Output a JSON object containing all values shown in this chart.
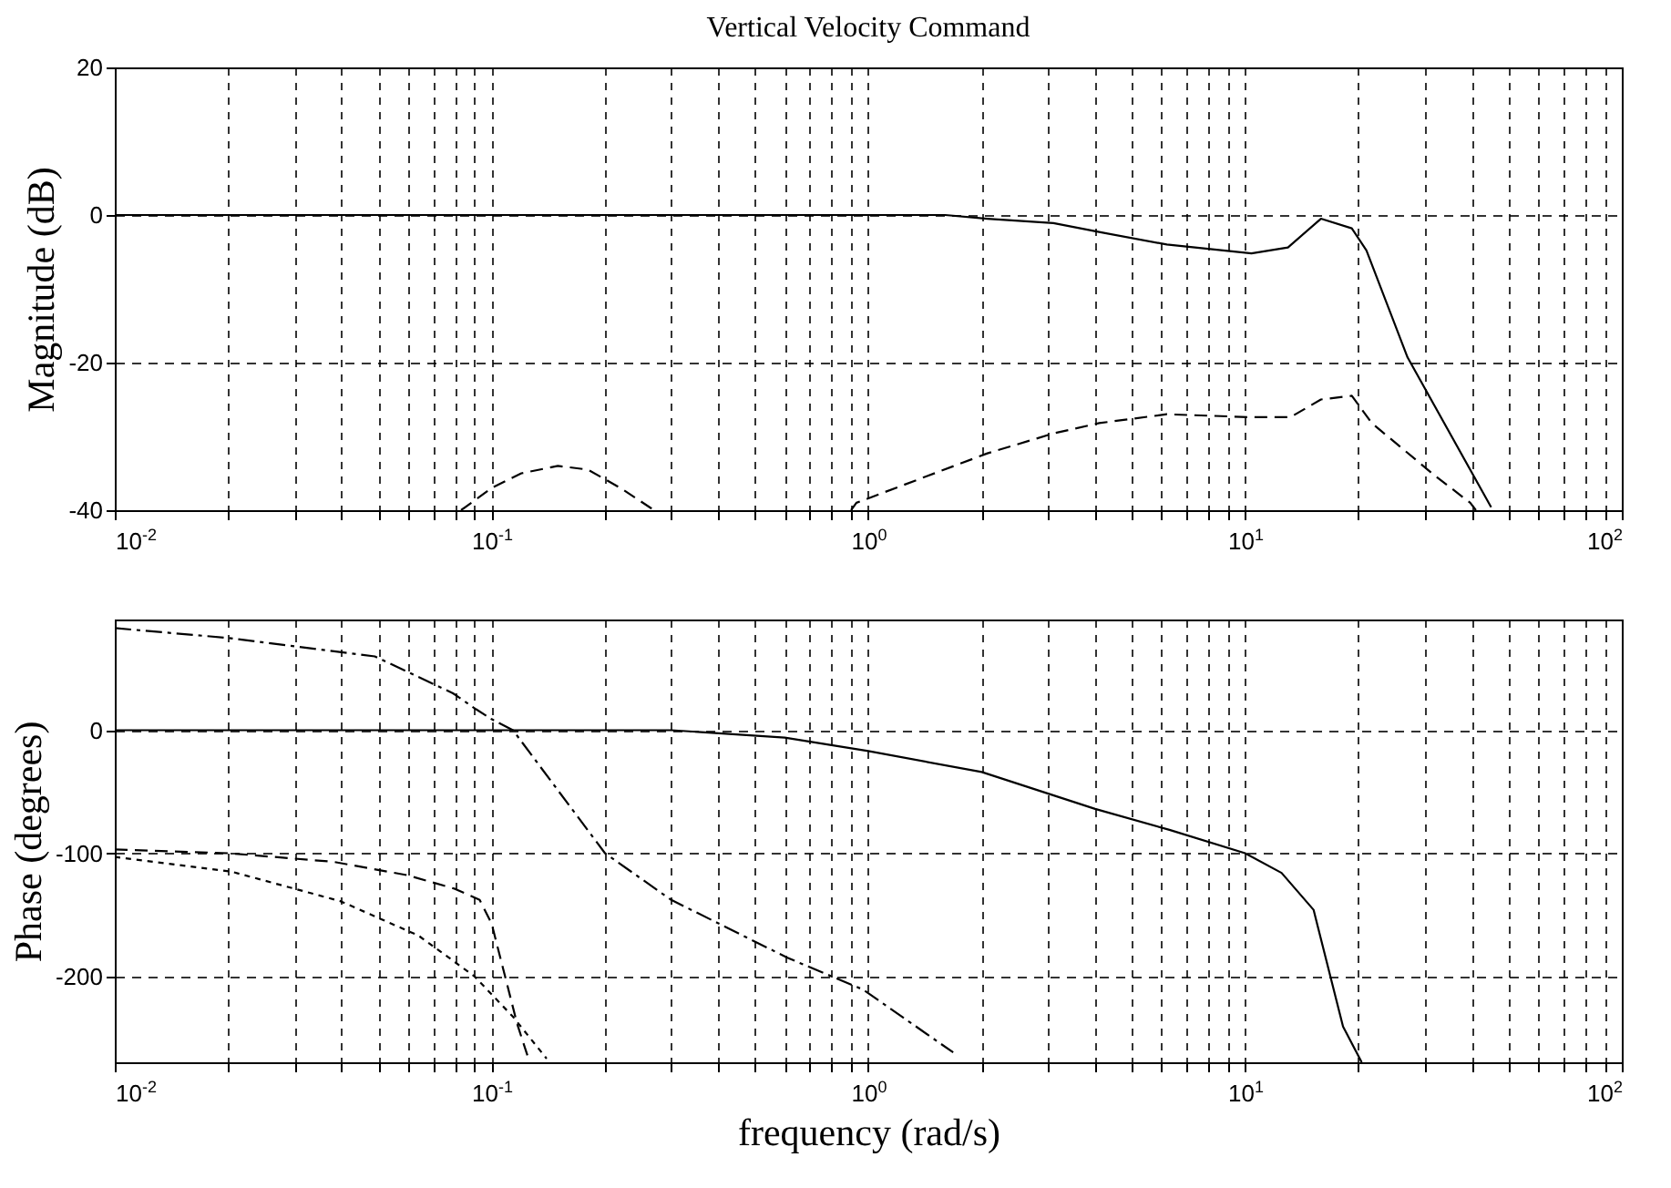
{
  "chart_data": [
    {
      "type": "line",
      "title": "Vertical Velocity Command",
      "ylabel": "Magnitude (dB)",
      "log": "x",
      "grid": true,
      "xlim": [
        0.01,
        100
      ],
      "ylim": [
        -40,
        20
      ],
      "yticks": [
        -40,
        -20,
        0,
        20
      ],
      "xticks": [
        {
          "value": 0.01,
          "label": "10$^{-2}$"
        },
        {
          "value": 0.1,
          "label": "10$^{-1}$"
        },
        {
          "value": 1,
          "label": "10$^{0}$"
        },
        {
          "value": 10,
          "label": "10$^{1}$"
        },
        {
          "value": 100,
          "label": "10$^{2}$"
        }
      ],
      "series": [
        {
          "color": "#000000",
          "line_style": "solid",
          "x": [
            0.01,
            0.1,
            0.5,
            1,
            1.6,
            2.07,
            3.1,
            4.1,
            6.2,
            10.4,
            13,
            15.9,
            19.2,
            21,
            27,
            45
          ],
          "values": [
            0,
            0,
            0,
            0,
            0,
            -0.5,
            -1.1,
            -2.3,
            -4,
            -5.2,
            -4.4,
            -0.5,
            -1.8,
            -4.8,
            -19.3,
            -39.6
          ]
        },
        {
          "color": "#000000",
          "line_style": "dashed",
          "x": [
            0.083,
            0.1,
            0.12,
            0.15,
            0.18,
            0.22,
            0.27
          ],
          "values": [
            -40,
            -37,
            -35,
            -34,
            -34.5,
            -37,
            -40
          ]
        },
        {
          "color": "#000000",
          "line_style": "dashed",
          "x": [
            0.9,
            0.93,
            2.07,
            3.1,
            4.1,
            6.2,
            10.4,
            13.2,
            15.9,
            19.2,
            21.7,
            31.7,
            39.6,
            41
          ],
          "values": [
            -40,
            -39,
            -32.3,
            -29.6,
            -28.2,
            -27,
            -27.4,
            -27.4,
            -25,
            -24.5,
            -28.2,
            -35.2,
            -39,
            -40
          ]
        }
      ]
    },
    {
      "type": "line",
      "ylabel": "Phase (degrees)",
      "xlabel": "frequency (rad/s)",
      "log": "x",
      "grid": true,
      "xlim": [
        0.01,
        100
      ],
      "ylim": [
        -270,
        90
      ],
      "yticks": [
        -200,
        -100,
        0
      ],
      "xticks": [
        {
          "value": 0.01,
          "label": "10$^{-2}$"
        },
        {
          "value": 0.1,
          "label": "10$^{-1}$"
        },
        {
          "value": 1,
          "label": "10$^{0}$"
        },
        {
          "value": 10,
          "label": "10$^{1}$"
        },
        {
          "value": 100,
          "label": "10$^{2}$"
        }
      ],
      "series": [
        {
          "color": "#000000",
          "line_style": "solid",
          "x": [
            0.01,
            0.1,
            0.3,
            0.6,
            1,
            2,
            4,
            6.3,
            10,
            12.5,
            15.2,
            18.2,
            20.4
          ],
          "values": [
            0,
            0,
            0,
            -6,
            -17,
            -34,
            -64,
            -81,
            -100,
            -116,
            -146,
            -241,
            -270
          ]
        },
        {
          "color": "#000000",
          "line_style": "dashdot",
          "x": [
            0.01,
            0.02,
            0.049,
            0.079,
            0.091,
            0.1,
            0.114,
            0.2,
            0.3,
            0.61,
            0.97,
            1.68
          ],
          "values": [
            83,
            75,
            60,
            30,
            17,
            9,
            0,
            -100,
            -138,
            -185,
            -211,
            -262
          ]
        },
        {
          "color": "#000000",
          "line_style": "dashed",
          "x": [
            0.01,
            0.02,
            0.038,
            0.06,
            0.08,
            0.093,
            0.1,
            0.117,
            0.125
          ],
          "values": [
            -97,
            -100,
            -107,
            -118,
            -129,
            -138,
            -157,
            -239,
            -266
          ]
        },
        {
          "color": "#000000",
          "line_style": "dotted",
          "x": [
            0.01,
            0.0204,
            0.0397,
            0.064,
            0.09,
            0.114,
            0.14
          ],
          "values": [
            -103,
            -115,
            -139,
            -167,
            -200,
            -233,
            -267
          ]
        }
      ]
    }
  ]
}
